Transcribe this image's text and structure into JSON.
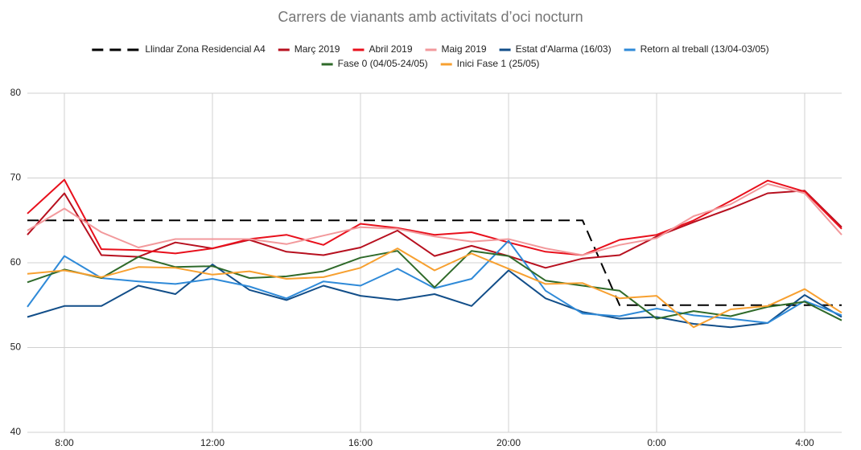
{
  "chart_data": {
    "type": "line",
    "title": "Carrers de vianants amb activitats d’oci nocturn",
    "categories": [
      null,
      "8:00",
      null,
      null,
      null,
      "12:00",
      null,
      null,
      null,
      "16:00",
      null,
      null,
      null,
      "20:00",
      null,
      null,
      null,
      "0:00",
      null,
      null,
      null,
      "4:00",
      null
    ],
    "ylim": [
      40,
      80
    ],
    "yticks": [
      40,
      50,
      60,
      70,
      80
    ],
    "grid": true,
    "legend": "top",
    "series": [
      {
        "name": "Llindar Zona Residencial A4",
        "color": "#000000",
        "dashed": true,
        "values": [
          65,
          65,
          65,
          65,
          65,
          65,
          65,
          65,
          65,
          65,
          65,
          65,
          65,
          65,
          65,
          65,
          55,
          55,
          55,
          55,
          55,
          55,
          55
        ]
      },
      {
        "name": "Març 2019",
        "color": "#b7101f",
        "values": [
          63.3,
          68.2,
          60.9,
          60.7,
          62.4,
          61.7,
          62.7,
          61.3,
          60.9,
          61.8,
          63.8,
          60.8,
          62.0,
          60.8,
          59.4,
          60.5,
          60.9,
          63.1,
          64.8,
          66.4,
          68.2,
          68.5,
          64.2
        ]
      },
      {
        "name": "Abril 2019",
        "color": "#e8101c",
        "values": [
          65.8,
          69.8,
          61.6,
          61.5,
          61.1,
          61.7,
          62.8,
          63.3,
          62.1,
          64.6,
          64.1,
          63.3,
          63.6,
          62.4,
          61.3,
          60.9,
          62.7,
          63.3,
          65.0,
          67.3,
          69.7,
          68.4,
          64.0
        ]
      },
      {
        "name": "Maig 2019",
        "color": "#f2999c",
        "values": [
          63.8,
          66.4,
          63.6,
          61.8,
          62.8,
          62.8,
          62.8,
          62.2,
          63.2,
          64.2,
          64.0,
          63.1,
          62.5,
          62.8,
          61.7,
          60.9,
          62.1,
          62.9,
          65.5,
          66.9,
          69.3,
          68.2,
          63.3
        ]
      },
      {
        "name": "Estat d'Alarma (16/03)",
        "color": "#124e89",
        "values": [
          53.6,
          54.9,
          54.9,
          57.3,
          56.3,
          59.8,
          56.8,
          55.6,
          57.3,
          56.1,
          55.6,
          56.3,
          54.9,
          59.1,
          55.8,
          54.2,
          53.4,
          53.6,
          52.8,
          52.4,
          52.9,
          56.2,
          53.6
        ]
      },
      {
        "name": "Retorn al treball (13/04-03/05)",
        "color": "#2f8ad8",
        "values": [
          54.8,
          60.8,
          58.2,
          57.8,
          57.5,
          58.1,
          57.2,
          55.8,
          57.8,
          57.3,
          59.3,
          57.0,
          58.1,
          62.6,
          56.7,
          54.0,
          53.7,
          54.6,
          53.8,
          53.4,
          52.9,
          55.5,
          53.8
        ]
      },
      {
        "name": "Fase 0 (04/05-24/05)",
        "color": "#2f6a2a",
        "values": [
          57.7,
          59.2,
          58.2,
          60.7,
          59.5,
          59.6,
          58.2,
          58.4,
          59.0,
          60.6,
          61.4,
          57.1,
          61.4,
          60.8,
          57.9,
          57.3,
          56.7,
          53.4,
          54.3,
          53.7,
          54.8,
          55.4,
          53.2
        ]
      },
      {
        "name": "Inici Fase 1 (25/05)",
        "color": "#f7a030",
        "values": [
          58.7,
          59.1,
          58.3,
          59.5,
          59.4,
          58.6,
          59.0,
          58.1,
          58.3,
          59.4,
          61.7,
          59.1,
          61.1,
          59.3,
          57.5,
          57.6,
          55.8,
          56.1,
          52.4,
          54.5,
          54.9,
          56.9,
          54.1
        ]
      }
    ]
  }
}
